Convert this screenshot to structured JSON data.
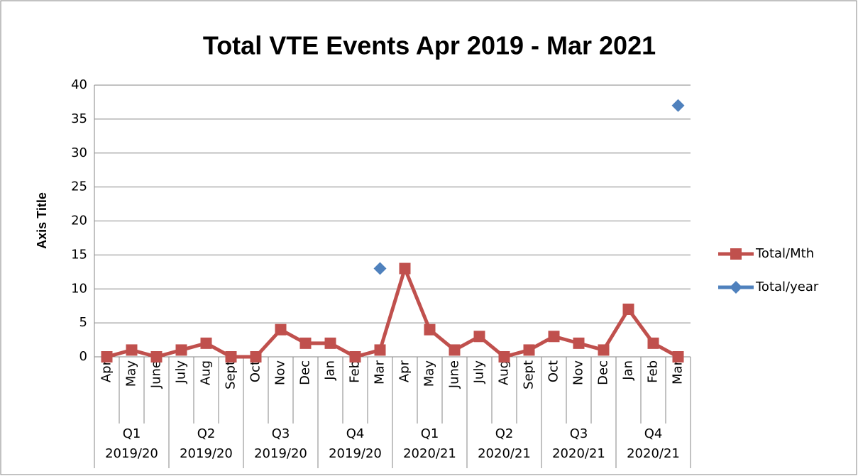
{
  "chart_data": {
    "type": "line",
    "title": "Total VTE Events Apr 2019 - Mar 2021",
    "y_label": "Axis Title",
    "categories": [
      "Apr",
      "May",
      "June",
      "July",
      "Aug",
      "Sept",
      "Oct",
      "Nov",
      "Dec",
      "Jan",
      "Feb",
      "Mar",
      "Apr",
      "May",
      "June",
      "July",
      "Aug",
      "Sept",
      "Oct",
      "Nov",
      "Dec",
      "Jan",
      "Feb",
      "Mar"
    ],
    "groups": [
      [
        "Q1",
        "2019/20"
      ],
      [
        "Q2",
        "2019/20"
      ],
      [
        "Q3",
        "2019/20"
      ],
      [
        "Q4",
        "2019/20"
      ],
      [
        "Q1",
        "2020/21"
      ],
      [
        "Q2",
        "2020/21"
      ],
      [
        "Q3",
        "2020/21"
      ],
      [
        "Q4",
        "2020/21"
      ]
    ],
    "series": [
      {
        "name": "Total/Mth",
        "color": "#c0504d",
        "marker": "square",
        "values": [
          0,
          1,
          0,
          1,
          2,
          0,
          0,
          4,
          2,
          2,
          0,
          1,
          13,
          4,
          1,
          3,
          0,
          1,
          3,
          2,
          1,
          7,
          2,
          0
        ]
      },
      {
        "name": "Total/year",
        "color": "#4f81bd",
        "marker": "diamond",
        "values": [
          null,
          null,
          null,
          null,
          null,
          null,
          null,
          null,
          null,
          null,
          null,
          13,
          null,
          null,
          null,
          null,
          null,
          null,
          null,
          null,
          null,
          null,
          null,
          37
        ]
      }
    ],
    "ylim": [
      0,
      40
    ],
    "yticks": [
      0,
      5,
      10,
      15,
      20,
      25,
      30,
      35,
      40
    ],
    "grid": true,
    "legend": "right"
  }
}
